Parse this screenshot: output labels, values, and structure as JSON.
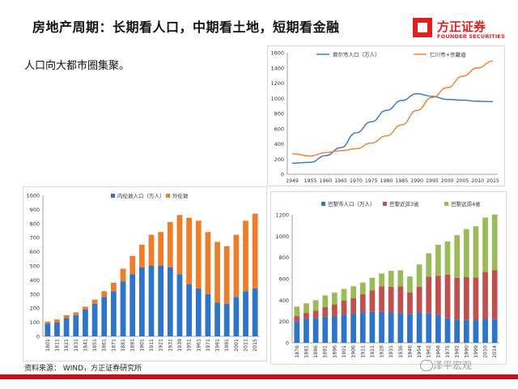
{
  "header": {
    "title": "房地产周期：长期看人口，中期看土地，短期看金融",
    "logo_cn": "方正证券",
    "logo_en": "FOUNDER SECURITIES"
  },
  "subtitle": "人口向大都市圈集聚。",
  "source": "资料来源： WIND，方正证券研究所",
  "watermark": "泽平宏观",
  "colors": {
    "blue": "#2e75c9",
    "orange": "#ee7d2a",
    "red": "#c0504d",
    "green": "#9bbb59",
    "brand_red": "#e02020"
  },
  "chart_data": [
    {
      "type": "line",
      "title": "",
      "x": [
        1949,
        1955,
        1960,
        1965,
        1970,
        1975,
        1980,
        1985,
        1990,
        1995,
        2000,
        2005,
        2010,
        2015
      ],
      "xticks": [
        "1949",
        "1955",
        "1960",
        "1965",
        "1970",
        "1975",
        "1980",
        "1985",
        "1990",
        "1995",
        "2000",
        "2005",
        "2010",
        "2015"
      ],
      "ylim": [
        0,
        1600
      ],
      "yticks": [
        0,
        200,
        400,
        600,
        800,
        1000,
        1200,
        1400,
        1600
      ],
      "legend_position": "top",
      "series": [
        {
          "name": "首尔市人口（万人）",
          "color": "#2e75c9",
          "values": [
            145,
            157,
            245,
            350,
            545,
            690,
            840,
            970,
            1060,
            1025,
            985,
            975,
            960,
            955
          ]
        },
        {
          "name": "仁川市+京畿道",
          "color": "#ee7d2a",
          "values": [
            270,
            240,
            285,
            310,
            335,
            410,
            505,
            650,
            840,
            1010,
            1140,
            1290,
            1400,
            1490
          ]
        }
      ]
    },
    {
      "type": "bar",
      "stacked": true,
      "title": "",
      "categories": [
        "1801",
        "1811",
        "1821",
        "1831",
        "1841",
        "1851",
        "1861",
        "1871",
        "1881",
        "1891",
        "1901",
        "1911",
        "1921",
        "1931",
        "1939",
        "1951",
        "1961",
        "1971",
        "1981",
        "1991",
        "2001",
        "2011",
        "2015"
      ],
      "xticks": [
        "1801",
        "1811",
        "1821",
        "1831",
        "1841",
        "1851",
        "1861",
        "1871",
        "1881",
        "1891",
        "1901",
        "1911",
        "1921",
        "1931",
        "1939",
        "1951",
        "1961",
        "1971",
        "1981",
        "1991",
        "2001",
        "2011",
        "2015"
      ],
      "ylim": [
        0,
        1000
      ],
      "yticks": [
        0,
        100,
        200,
        300,
        400,
        500,
        600,
        700,
        800,
        900,
        1000
      ],
      "legend_position": "top",
      "series": [
        {
          "name": "内伦敦人口（万人）",
          "color": "#2e75c9",
          "values": [
            90,
            100,
            130,
            150,
            190,
            230,
            280,
            320,
            390,
            440,
            490,
            500,
            500,
            490,
            440,
            370,
            340,
            300,
            240,
            230,
            280,
            320,
            340
          ]
        },
        {
          "name": "外伦敦",
          "color": "#ee7d2a",
          "values": [
            15,
            20,
            20,
            20,
            20,
            30,
            40,
            60,
            90,
            130,
            160,
            220,
            240,
            320,
            420,
            470,
            480,
            440,
            430,
            410,
            440,
            500,
            530
          ]
        }
      ]
    },
    {
      "type": "bar",
      "stacked": true,
      "title": "",
      "categories": [
        "1876",
        "1881",
        "1886",
        "1891",
        "1896",
        "1901",
        "1906",
        "1911",
        "1921",
        "1926",
        "1931",
        "1936",
        "1946",
        "1954",
        "1962",
        "1968",
        "1975",
        "1982",
        "1990",
        "1999",
        "2010",
        "2014"
      ],
      "xticks": [
        "1876",
        "1881",
        "1886",
        "1891",
        "1896",
        "1901",
        "1906",
        "1911",
        "1921",
        "1926",
        "1931",
        "1936",
        "1946",
        "1954",
        "1962",
        "1968",
        "1975",
        "1982",
        "1990",
        "1999",
        "2010",
        "2014"
      ],
      "ylim": [
        0,
        1200
      ],
      "yticks": [
        0,
        200,
        400,
        600,
        800,
        1000,
        1200
      ],
      "legend_position": "top",
      "series": [
        {
          "name": "巴黎市人口（万人）",
          "color": "#2e75c9",
          "values": [
            200,
            225,
            230,
            245,
            250,
            265,
            270,
            285,
            290,
            290,
            285,
            280,
            272,
            285,
            279,
            259,
            230,
            218,
            215,
            212,
            224,
            222
          ]
        },
        {
          "name": "巴黎近郊3省",
          "color": "#c0504d",
          "values": [
            50,
            55,
            70,
            90,
            110,
            130,
            150,
            170,
            200,
            240,
            240,
            250,
            200,
            240,
            340,
            370,
            410,
            390,
            400,
            400,
            440,
            460
          ]
        },
        {
          "name": "巴黎远郊4省",
          "color": "#9bbb59",
          "values": [
            90,
            90,
            100,
            110,
            110,
            110,
            110,
            110,
            120,
            120,
            150,
            150,
            150,
            210,
            220,
            290,
            310,
            400,
            450,
            480,
            510,
            520
          ]
        }
      ]
    }
  ]
}
